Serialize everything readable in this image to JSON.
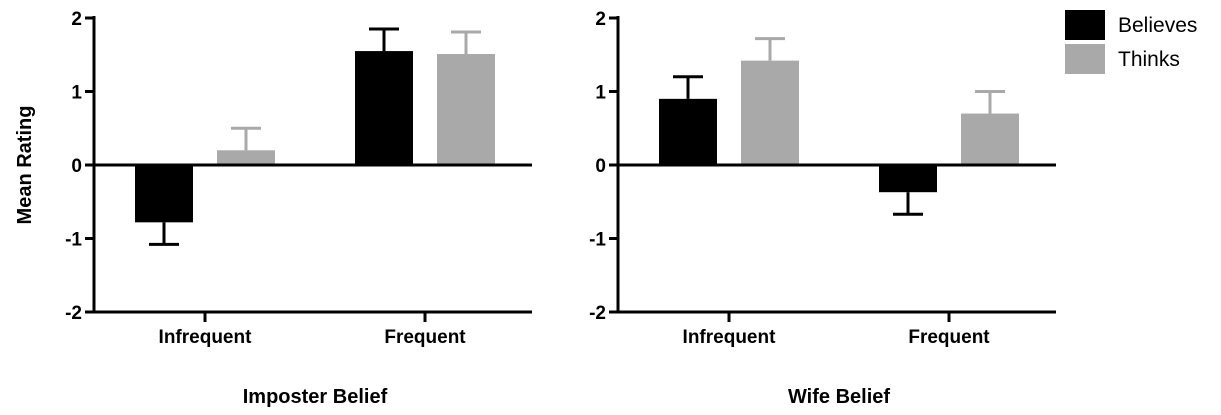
{
  "colors": {
    "believes": "#000000",
    "thinks": "#a9a9a9",
    "axis": "#000000"
  },
  "legend": {
    "position": "top-right",
    "items": [
      {
        "label": "Believes",
        "color": "#000000"
      },
      {
        "label": "Thinks",
        "color": "#a9a9a9"
      }
    ]
  },
  "chart_data": [
    {
      "type": "bar",
      "title": "",
      "xlabel": "Imposter Belief",
      "ylabel": "Mean Rating",
      "categories": [
        "Infrequent",
        "Frequent"
      ],
      "ylim": [
        -2,
        2
      ],
      "yticks": [
        "2",
        "1",
        "0",
        "-1",
        "-2"
      ],
      "grid": false,
      "series": [
        {
          "name": "Believes",
          "values": [
            -0.78,
            1.55
          ],
          "errors": [
            0.3,
            0.3
          ]
        },
        {
          "name": "Thinks",
          "values": [
            0.2,
            1.51
          ],
          "errors": [
            0.3,
            0.3
          ]
        }
      ]
    },
    {
      "type": "bar",
      "title": "",
      "xlabel": "Wife Belief",
      "ylabel": "",
      "categories": [
        "Infrequent",
        "Frequent"
      ],
      "ylim": [
        -2,
        2
      ],
      "yticks": [
        "2",
        "1",
        "0",
        "-1",
        "-2"
      ],
      "grid": false,
      "series": [
        {
          "name": "Believes",
          "values": [
            0.9,
            -0.37
          ],
          "errors": [
            0.3,
            0.3
          ]
        },
        {
          "name": "Thinks",
          "values": [
            1.42,
            0.7
          ],
          "errors": [
            0.3,
            0.3
          ]
        }
      ]
    }
  ]
}
